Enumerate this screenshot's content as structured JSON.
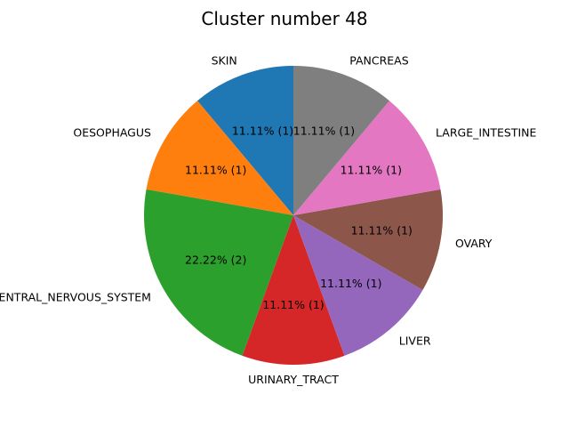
{
  "chart_data": {
    "type": "pie",
    "title": "Cluster number 48",
    "slices": [
      {
        "label": "SKIN",
        "value": 1,
        "percent_label": "11.11%  (1)",
        "color": "#1f77b4"
      },
      {
        "label": "OESOPHAGUS",
        "value": 1,
        "percent_label": "11.11%  (1)",
        "color": "#ff7f0e"
      },
      {
        "label": "CENTRAL_NERVOUS_SYSTEM",
        "value": 2,
        "percent_label": "22.22%  (2)",
        "color": "#2ca02c"
      },
      {
        "label": "URINARY_TRACT",
        "value": 1,
        "percent_label": "11.11%  (1)",
        "color": "#d62728"
      },
      {
        "label": "LIVER",
        "value": 1,
        "percent_label": "11.11%  (1)",
        "color": "#9467bd"
      },
      {
        "label": "OVARY",
        "value": 1,
        "percent_label": "11.11%  (1)",
        "color": "#8c564b"
      },
      {
        "label": "LARGE_INTESTINE",
        "value": 1,
        "percent_label": "11.11%  (1)",
        "color": "#e377c2"
      },
      {
        "label": "PANCREAS",
        "value": 1,
        "percent_label": "11.11%  (1)",
        "color": "#7f7f7f"
      }
    ],
    "start_angle_deg": 90,
    "direction": "counterclockwise"
  }
}
